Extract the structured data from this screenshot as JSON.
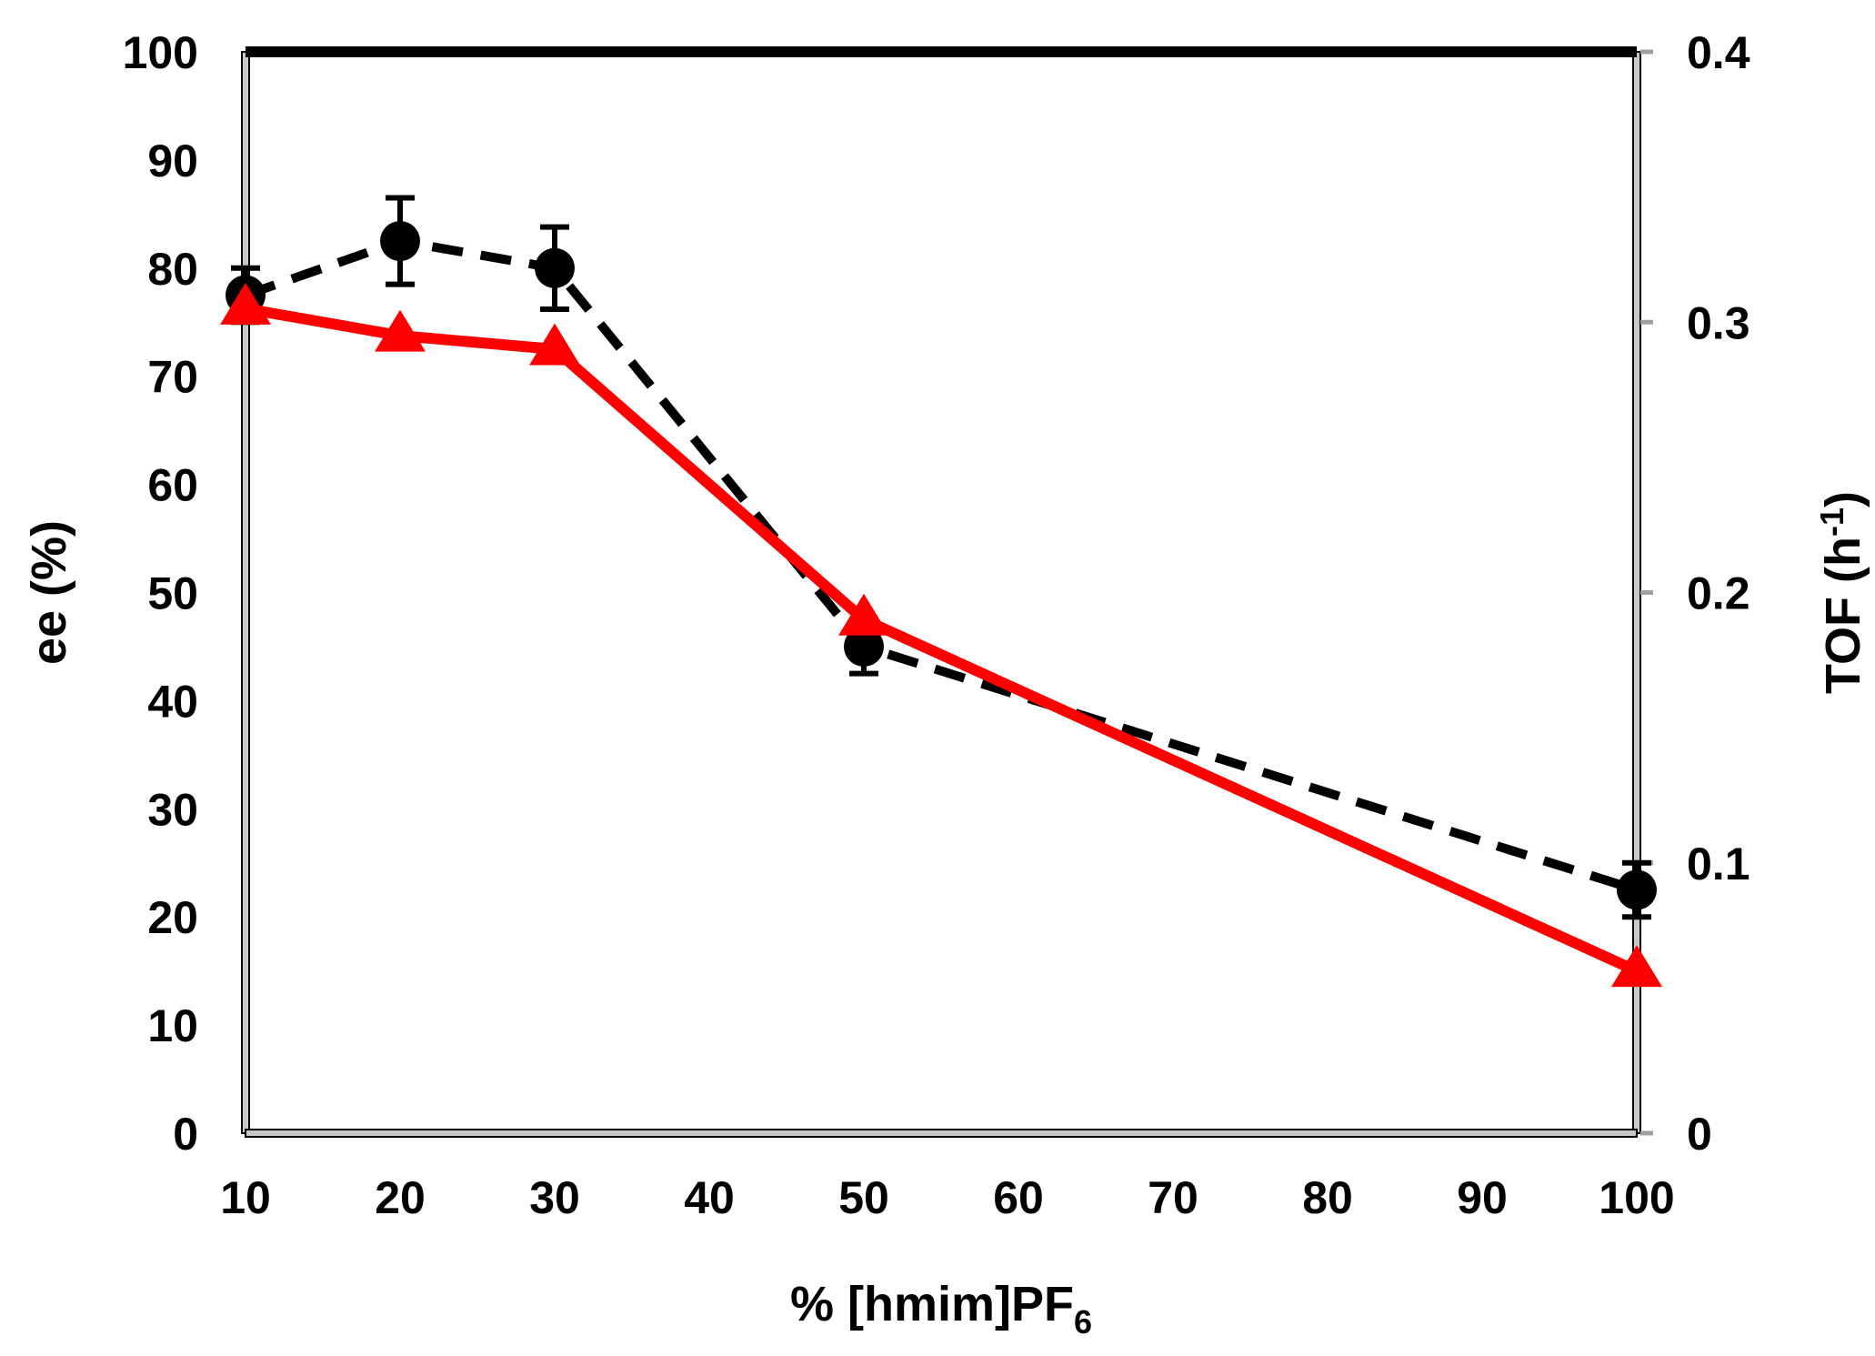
{
  "chart_data": {
    "type": "line",
    "title": "",
    "xlabel": {
      "text": "% [hmim]PF",
      "subscript": "6"
    },
    "ylabel_left": "ee (%)",
    "ylabel_right": {
      "text": "TOF (h",
      "superscript": "-1",
      "suffix": ")"
    },
    "xlim": [
      10,
      100
    ],
    "ylim_left": [
      0,
      100
    ],
    "ylim_right": [
      0,
      0.4
    ],
    "x_ticks": [
      "10",
      "20",
      "30",
      "40",
      "50",
      "60",
      "70",
      "80",
      "90",
      "100"
    ],
    "y_left_ticks": [
      "0",
      "10",
      "20",
      "30",
      "40",
      "50",
      "60",
      "70",
      "80",
      "90",
      "100"
    ],
    "y_right_ticks": [
      "0",
      "0.1",
      "0.2",
      "0.3",
      "0.4"
    ],
    "grid": false,
    "legend": "none",
    "series": [
      {
        "axis": "left",
        "marker": "circle",
        "line_style": "dashed",
        "color": "#000000",
        "x": [
          10,
          20,
          30,
          50,
          100
        ],
        "y": [
          77.5,
          82.5,
          80,
          45,
          22.5
        ],
        "error": [
          2.5,
          4,
          3.8,
          2.5,
          2.5
        ]
      },
      {
        "axis": "right",
        "marker": "triangle",
        "line_style": "solid",
        "color": "#ff0000",
        "x": [
          10,
          20,
          30,
          50,
          100
        ],
        "y": [
          0.305,
          0.295,
          0.29,
          0.19,
          0.06
        ]
      }
    ]
  }
}
